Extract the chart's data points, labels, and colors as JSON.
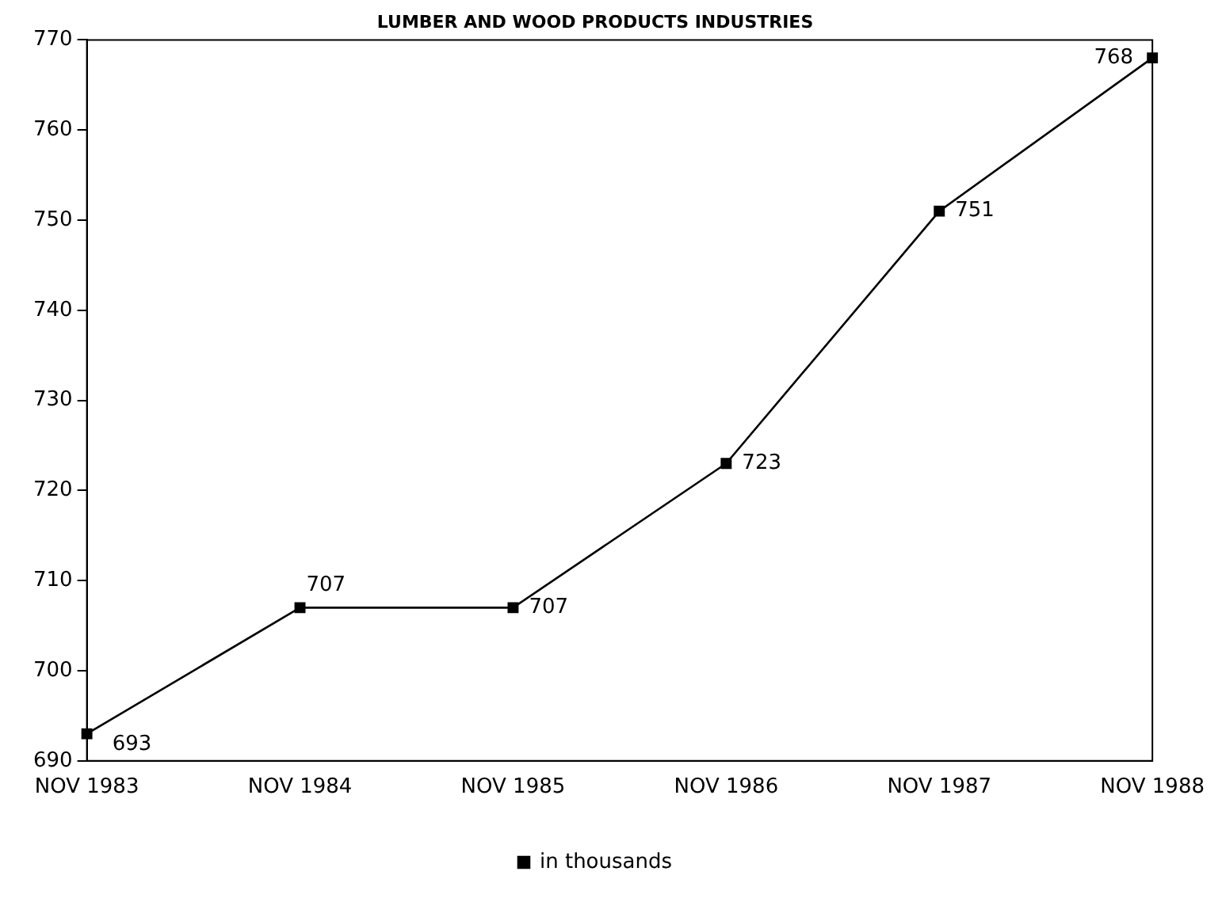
{
  "chart_data": {
    "type": "line",
    "title": "LUMBER AND WOOD PRODUCTS INDUSTRIES",
    "categories": [
      "NOV 1983",
      "NOV 1984",
      "NOV 1985",
      "NOV 1986",
      "NOV 1987",
      "NOV 1988"
    ],
    "series": [
      {
        "name": "in thousands",
        "color": "#000000",
        "values": [
          693,
          707,
          707,
          723,
          751,
          768
        ]
      }
    ],
    "ylim": [
      690,
      770
    ],
    "yticks": [
      690,
      700,
      710,
      720,
      730,
      740,
      750,
      760,
      770
    ],
    "marker": "square",
    "line_style": "solid",
    "legend": "bottom",
    "data_labels": true
  }
}
